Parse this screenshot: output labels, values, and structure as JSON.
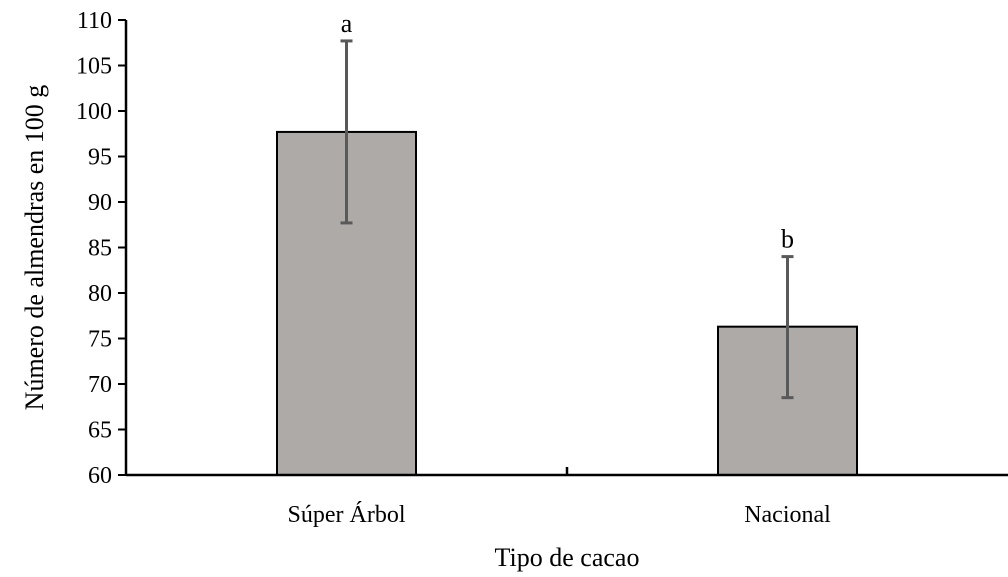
{
  "chart_data": {
    "type": "bar",
    "xlabel": "Tipo de cacao",
    "ylabel": "Número de almendras en 100 g",
    "categories": [
      "Súper Árbol",
      "Nacional"
    ],
    "values": [
      97.7,
      76.3
    ],
    "error_upper": [
      107.7,
      84.0
    ],
    "error_lower": [
      87.7,
      68.5
    ],
    "significance_labels": [
      "a",
      "b"
    ],
    "ylim": [
      60,
      110
    ],
    "yticks": [
      60,
      65,
      70,
      75,
      80,
      85,
      90,
      95,
      100,
      105,
      110
    ],
    "grid": false,
    "legend": "none",
    "colors": {
      "bar_fill": "#aeaaa8",
      "bar_stroke": "#000000",
      "error_bar": "#595959",
      "axis": "#000000"
    }
  }
}
